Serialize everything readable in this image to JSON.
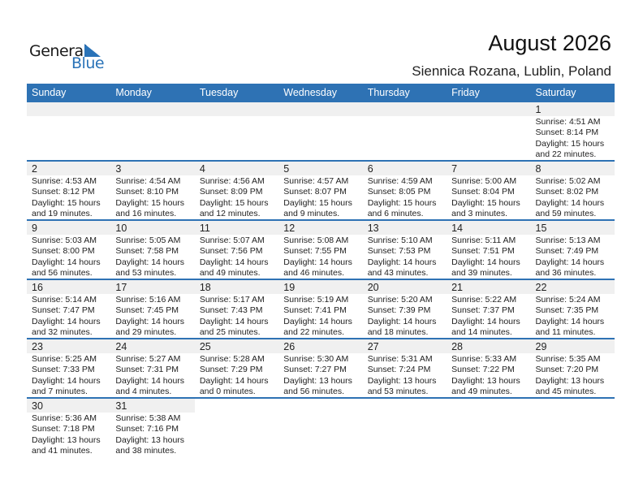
{
  "logo": {
    "general": "General",
    "blue": "Blue"
  },
  "header": {
    "title": "August 2026",
    "location": "Siennica Rozana, Lublin, Poland"
  },
  "weekdays": [
    "Sunday",
    "Monday",
    "Tuesday",
    "Wednesday",
    "Thursday",
    "Friday",
    "Saturday"
  ],
  "colors": {
    "accent": "#2e72b4",
    "date_band": "#f0f0f0"
  },
  "first_weekday_offset": 6,
  "days": [
    {
      "day": "1",
      "sunrise": "Sunrise: 4:51 AM",
      "sunset": "Sunset: 8:14 PM",
      "daylight1": "Daylight: 15 hours",
      "daylight2": "and 22 minutes."
    },
    {
      "day": "2",
      "sunrise": "Sunrise: 4:53 AM",
      "sunset": "Sunset: 8:12 PM",
      "daylight1": "Daylight: 15 hours",
      "daylight2": "and 19 minutes."
    },
    {
      "day": "3",
      "sunrise": "Sunrise: 4:54 AM",
      "sunset": "Sunset: 8:10 PM",
      "daylight1": "Daylight: 15 hours",
      "daylight2": "and 16 minutes."
    },
    {
      "day": "4",
      "sunrise": "Sunrise: 4:56 AM",
      "sunset": "Sunset: 8:09 PM",
      "daylight1": "Daylight: 15 hours",
      "daylight2": "and 12 minutes."
    },
    {
      "day": "5",
      "sunrise": "Sunrise: 4:57 AM",
      "sunset": "Sunset: 8:07 PM",
      "daylight1": "Daylight: 15 hours",
      "daylight2": "and 9 minutes."
    },
    {
      "day": "6",
      "sunrise": "Sunrise: 4:59 AM",
      "sunset": "Sunset: 8:05 PM",
      "daylight1": "Daylight: 15 hours",
      "daylight2": "and 6 minutes."
    },
    {
      "day": "7",
      "sunrise": "Sunrise: 5:00 AM",
      "sunset": "Sunset: 8:04 PM",
      "daylight1": "Daylight: 15 hours",
      "daylight2": "and 3 minutes."
    },
    {
      "day": "8",
      "sunrise": "Sunrise: 5:02 AM",
      "sunset": "Sunset: 8:02 PM",
      "daylight1": "Daylight: 14 hours",
      "daylight2": "and 59 minutes."
    },
    {
      "day": "9",
      "sunrise": "Sunrise: 5:03 AM",
      "sunset": "Sunset: 8:00 PM",
      "daylight1": "Daylight: 14 hours",
      "daylight2": "and 56 minutes."
    },
    {
      "day": "10",
      "sunrise": "Sunrise: 5:05 AM",
      "sunset": "Sunset: 7:58 PM",
      "daylight1": "Daylight: 14 hours",
      "daylight2": "and 53 minutes."
    },
    {
      "day": "11",
      "sunrise": "Sunrise: 5:07 AM",
      "sunset": "Sunset: 7:56 PM",
      "daylight1": "Daylight: 14 hours",
      "daylight2": "and 49 minutes."
    },
    {
      "day": "12",
      "sunrise": "Sunrise: 5:08 AM",
      "sunset": "Sunset: 7:55 PM",
      "daylight1": "Daylight: 14 hours",
      "daylight2": "and 46 minutes."
    },
    {
      "day": "13",
      "sunrise": "Sunrise: 5:10 AM",
      "sunset": "Sunset: 7:53 PM",
      "daylight1": "Daylight: 14 hours",
      "daylight2": "and 43 minutes."
    },
    {
      "day": "14",
      "sunrise": "Sunrise: 5:11 AM",
      "sunset": "Sunset: 7:51 PM",
      "daylight1": "Daylight: 14 hours",
      "daylight2": "and 39 minutes."
    },
    {
      "day": "15",
      "sunrise": "Sunrise: 5:13 AM",
      "sunset": "Sunset: 7:49 PM",
      "daylight1": "Daylight: 14 hours",
      "daylight2": "and 36 minutes."
    },
    {
      "day": "16",
      "sunrise": "Sunrise: 5:14 AM",
      "sunset": "Sunset: 7:47 PM",
      "daylight1": "Daylight: 14 hours",
      "daylight2": "and 32 minutes."
    },
    {
      "day": "17",
      "sunrise": "Sunrise: 5:16 AM",
      "sunset": "Sunset: 7:45 PM",
      "daylight1": "Daylight: 14 hours",
      "daylight2": "and 29 minutes."
    },
    {
      "day": "18",
      "sunrise": "Sunrise: 5:17 AM",
      "sunset": "Sunset: 7:43 PM",
      "daylight1": "Daylight: 14 hours",
      "daylight2": "and 25 minutes."
    },
    {
      "day": "19",
      "sunrise": "Sunrise: 5:19 AM",
      "sunset": "Sunset: 7:41 PM",
      "daylight1": "Daylight: 14 hours",
      "daylight2": "and 22 minutes."
    },
    {
      "day": "20",
      "sunrise": "Sunrise: 5:20 AM",
      "sunset": "Sunset: 7:39 PM",
      "daylight1": "Daylight: 14 hours",
      "daylight2": "and 18 minutes."
    },
    {
      "day": "21",
      "sunrise": "Sunrise: 5:22 AM",
      "sunset": "Sunset: 7:37 PM",
      "daylight1": "Daylight: 14 hours",
      "daylight2": "and 14 minutes."
    },
    {
      "day": "22",
      "sunrise": "Sunrise: 5:24 AM",
      "sunset": "Sunset: 7:35 PM",
      "daylight1": "Daylight: 14 hours",
      "daylight2": "and 11 minutes."
    },
    {
      "day": "23",
      "sunrise": "Sunrise: 5:25 AM",
      "sunset": "Sunset: 7:33 PM",
      "daylight1": "Daylight: 14 hours",
      "daylight2": "and 7 minutes."
    },
    {
      "day": "24",
      "sunrise": "Sunrise: 5:27 AM",
      "sunset": "Sunset: 7:31 PM",
      "daylight1": "Daylight: 14 hours",
      "daylight2": "and 4 minutes."
    },
    {
      "day": "25",
      "sunrise": "Sunrise: 5:28 AM",
      "sunset": "Sunset: 7:29 PM",
      "daylight1": "Daylight: 14 hours",
      "daylight2": "and 0 minutes."
    },
    {
      "day": "26",
      "sunrise": "Sunrise: 5:30 AM",
      "sunset": "Sunset: 7:27 PM",
      "daylight1": "Daylight: 13 hours",
      "daylight2": "and 56 minutes."
    },
    {
      "day": "27",
      "sunrise": "Sunrise: 5:31 AM",
      "sunset": "Sunset: 7:24 PM",
      "daylight1": "Daylight: 13 hours",
      "daylight2": "and 53 minutes."
    },
    {
      "day": "28",
      "sunrise": "Sunrise: 5:33 AM",
      "sunset": "Sunset: 7:22 PM",
      "daylight1": "Daylight: 13 hours",
      "daylight2": "and 49 minutes."
    },
    {
      "day": "29",
      "sunrise": "Sunrise: 5:35 AM",
      "sunset": "Sunset: 7:20 PM",
      "daylight1": "Daylight: 13 hours",
      "daylight2": "and 45 minutes."
    },
    {
      "day": "30",
      "sunrise": "Sunrise: 5:36 AM",
      "sunset": "Sunset: 7:18 PM",
      "daylight1": "Daylight: 13 hours",
      "daylight2": "and 41 minutes."
    },
    {
      "day": "31",
      "sunrise": "Sunrise: 5:38 AM",
      "sunset": "Sunset: 7:16 PM",
      "daylight1": "Daylight: 13 hours",
      "daylight2": "and 38 minutes."
    }
  ]
}
